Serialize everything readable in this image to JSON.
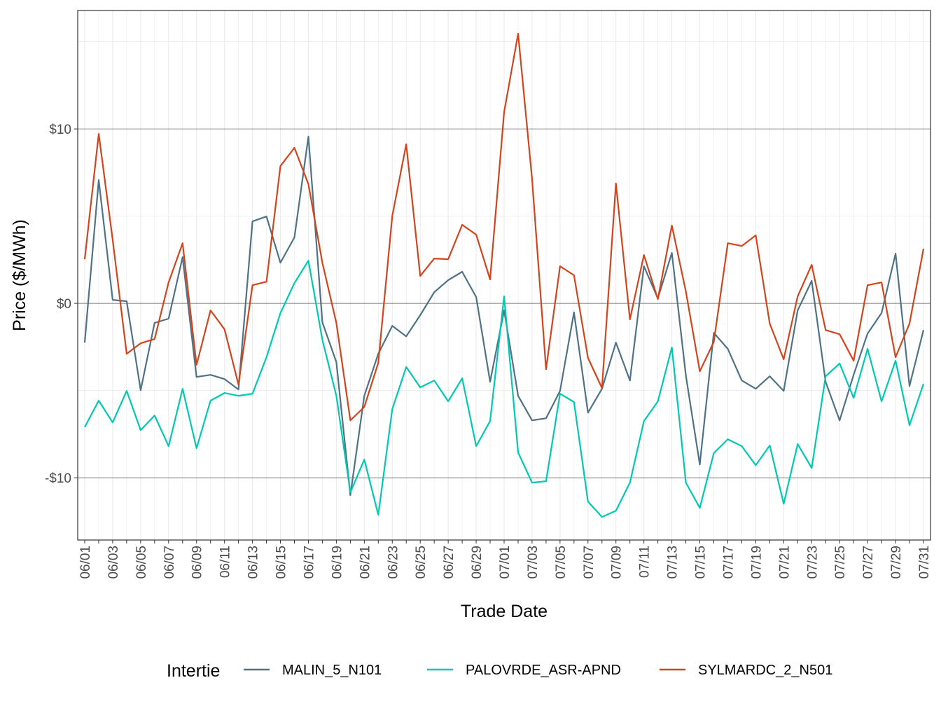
{
  "chart_data": {
    "type": "line",
    "xlabel": "Trade Date",
    "ylabel": "Price ($/MWh)",
    "ylim": [
      -13.57,
      16.79
    ],
    "yticks": [
      10,
      0,
      -10
    ],
    "ytick_labels": [
      "$10",
      "$0",
      "-$10"
    ],
    "grid": true,
    "legend_title": "Intertie",
    "legend_position": "bottom",
    "x_ticks": [
      "06/01",
      "06/03",
      "06/05",
      "06/07",
      "06/09",
      "06/11",
      "06/13",
      "06/15",
      "06/17",
      "06/19",
      "06/21",
      "06/23",
      "06/25",
      "06/27",
      "06/29",
      "07/01",
      "07/03",
      "07/05",
      "07/07",
      "07/09",
      "07/11",
      "07/13",
      "07/15",
      "07/17",
      "07/19",
      "07/21",
      "07/23",
      "07/25",
      "07/27",
      "07/29",
      "07/31"
    ],
    "series": [
      {
        "name": "MALIN_5_N101",
        "color": "#4f7386",
        "values": [
          -2.25,
          7.07,
          0.2,
          0.12,
          -4.98,
          -1.12,
          -0.88,
          2.65,
          -4.22,
          -4.1,
          -4.34,
          -4.94,
          4.7,
          4.98,
          2.33,
          3.78,
          9.56,
          -1.08,
          -3.37,
          -11.0,
          -5.3,
          -2.89,
          -1.29,
          -1.89,
          -0.68,
          0.64,
          1.33,
          1.81,
          0.36,
          -4.5,
          -0.4,
          -5.3,
          -6.71,
          -6.59,
          -5.02,
          -0.52,
          -6.27,
          -4.9,
          -2.25,
          -4.42,
          2.13,
          0.28,
          2.89,
          -4.14,
          -9.24,
          -1.69,
          -2.61,
          -4.42,
          -4.9,
          -4.18,
          -5.02,
          -0.4,
          1.29,
          -4.5,
          -6.71,
          -4.1,
          -1.73,
          -0.56,
          2.85,
          -4.74,
          -1.53
        ]
      },
      {
        "name": "PALOVRDE_ASR-APND",
        "color": "#00c9b1",
        "values": [
          -7.1,
          -5.58,
          -6.83,
          -5.02,
          -7.27,
          -6.43,
          -8.19,
          -4.9,
          -8.31,
          -5.58,
          -5.14,
          -5.3,
          -5.18,
          -3.09,
          -0.56,
          1.16,
          2.45,
          -2.09,
          -5.3,
          -10.84,
          -8.96,
          -12.13,
          -6.06,
          -3.65,
          -4.82,
          -4.42,
          -5.62,
          -4.3,
          -8.19,
          -6.75,
          0.4,
          -8.55,
          -10.28,
          -10.2,
          -5.18,
          -5.66,
          -11.37,
          -12.25,
          -11.89,
          -10.28,
          -6.75,
          -5.62,
          -2.53,
          -10.28,
          -11.73,
          -8.59,
          -7.79,
          -8.19,
          -9.28,
          -8.15,
          -11.49,
          -8.07,
          -9.44,
          -4.18,
          -3.45,
          -5.42,
          -2.61,
          -5.62,
          -3.29,
          -6.99,
          -4.62
        ]
      },
      {
        "name": "SYLMARDC_2_N501",
        "color": "#d3441c",
        "values": [
          2.53,
          9.72,
          3.65,
          -2.89,
          -2.29,
          -2.05,
          1.2,
          3.45,
          -3.53,
          -0.4,
          -1.49,
          -4.66,
          1.04,
          1.24,
          7.87,
          8.92,
          6.83,
          2.33,
          -1.12,
          -6.71,
          -5.94,
          -3.41,
          5.02,
          9.12,
          1.57,
          2.57,
          2.53,
          4.5,
          3.94,
          1.37,
          10.96,
          15.46,
          7.15,
          -3.78,
          2.13,
          1.61,
          -3.13,
          -4.86,
          6.87,
          -0.92,
          2.77,
          0.24,
          4.46,
          0.68,
          -3.9,
          -2.21,
          3.45,
          3.29,
          3.9,
          -1.16,
          -3.21,
          0.4,
          2.21,
          -1.53,
          -1.77,
          -3.29,
          1.04,
          1.2,
          -3.09,
          -1.16,
          3.13
        ]
      }
    ]
  }
}
